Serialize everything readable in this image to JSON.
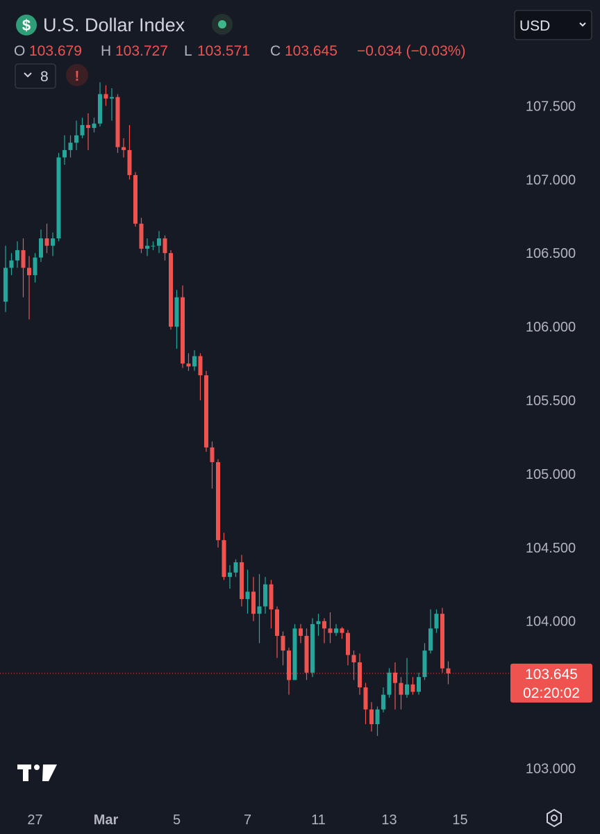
{
  "header": {
    "title": "U.S. Dollar Index",
    "currency": "USD",
    "ohlc_labels": [
      "O",
      "H",
      "L",
      "C"
    ],
    "change": "−0.034 (−0.03%)",
    "indicator_count": "8",
    "countdown": "02:20:02"
  },
  "chart_data": {
    "type": "candlestick",
    "up_color": "#26a69a",
    "down_color": "#ef5350",
    "grid": false,
    "ylim": [
      102.79,
      107.7
    ],
    "yticks": [
      {
        "value": 103,
        "label": "103.000"
      },
      {
        "value": 103.5,
        "label": "103.500"
      },
      {
        "value": 104,
        "label": "104.000"
      },
      {
        "value": 104.5,
        "label": "104.500"
      },
      {
        "value": 105,
        "label": "105.000"
      },
      {
        "value": 105.5,
        "label": "105.500"
      },
      {
        "value": 106,
        "label": "106.000"
      },
      {
        "value": 106.5,
        "label": "106.500"
      },
      {
        "value": 107,
        "label": "107.000"
      },
      {
        "value": 107.5,
        "label": "107.500"
      }
    ],
    "categories": [
      null,
      null,
      null,
      null,
      null,
      "27",
      null,
      null,
      null,
      null,
      null,
      null,
      null,
      null,
      null,
      null,
      null,
      "Mar",
      null,
      null,
      null,
      null,
      null,
      null,
      null,
      null,
      null,
      null,
      null,
      "5",
      null,
      null,
      null,
      null,
      null,
      null,
      null,
      null,
      null,
      null,
      null,
      "7",
      null,
      null,
      null,
      null,
      null,
      null,
      null,
      null,
      null,
      null,
      null,
      "11",
      null,
      null,
      null,
      null,
      null,
      null,
      null,
      null,
      null,
      null,
      null,
      "13",
      null,
      null,
      null,
      null,
      null,
      null,
      null,
      null,
      null,
      null,
      null,
      "15"
    ],
    "open": [
      106.17,
      106.4,
      106.45,
      106.52,
      106.4,
      106.35,
      106.47,
      106.6,
      106.55,
      106.6,
      107.15,
      107.2,
      107.25,
      107.3,
      107.37,
      107.35,
      107.38,
      107.58,
      107.55,
      107.56,
      107.22,
      107.2,
      107.03,
      106.7,
      106.53,
      106.55,
      106.55,
      106.6,
      106.5,
      106.0,
      106.2,
      105.75,
      105.73,
      105.8,
      105.67,
      105.18,
      105.08,
      104.55,
      104.3,
      104.33,
      104.4,
      104.15,
      104.2,
      104.05,
      104.1,
      104.25,
      104.08,
      103.9,
      103.8,
      103.6,
      103.95,
      103.9,
      103.65,
      103.98,
      104.0,
      103.95,
      103.92,
      103.95,
      103.92,
      103.77,
      103.72,
      103.55,
      103.4,
      103.3,
      103.4,
      103.5,
      103.65,
      103.58,
      103.5,
      103.57,
      103.52,
      103.62,
      103.8,
      103.95,
      104.05,
      103.679,
      null,
      null
    ],
    "high": [
      106.55,
      106.5,
      106.58,
      106.6,
      106.48,
      106.5,
      106.66,
      106.7,
      106.64,
      107.18,
      107.3,
      107.3,
      107.4,
      107.42,
      107.45,
      107.42,
      107.66,
      107.64,
      107.62,
      107.58,
      107.28,
      107.37,
      107.05,
      106.74,
      106.6,
      106.58,
      106.65,
      106.62,
      106.52,
      106.25,
      106.28,
      105.82,
      105.84,
      105.82,
      105.7,
      105.22,
      105.1,
      104.6,
      104.38,
      104.42,
      104.45,
      104.35,
      104.3,
      104.32,
      104.3,
      104.28,
      104.1,
      103.93,
      103.82,
      103.98,
      103.98,
      103.95,
      104.02,
      104.05,
      104.02,
      104.06,
      103.98,
      103.96,
      103.94,
      103.8,
      103.78,
      103.58,
      103.45,
      103.42,
      103.55,
      103.68,
      103.72,
      103.62,
      103.75,
      103.62,
      103.65,
      103.85,
      104.08,
      104.08,
      104.09,
      103.727,
      null,
      null
    ],
    "low": [
      106.1,
      106.35,
      106.4,
      106.2,
      106.05,
      106.3,
      106.44,
      106.5,
      106.48,
      106.58,
      107.1,
      107.15,
      107.2,
      107.28,
      107.2,
      107.32,
      107.36,
      107.5,
      107.4,
      107.18,
      107.15,
      107.0,
      106.68,
      106.5,
      106.48,
      106.52,
      106.5,
      106.45,
      105.98,
      105.85,
      105.72,
      105.7,
      105.7,
      105.5,
      105.15,
      104.9,
      104.5,
      104.28,
      104.22,
      104.3,
      104.1,
      104.05,
      104.0,
      103.85,
      104.05,
      103.95,
      103.75,
      103.7,
      103.5,
      103.6,
      103.85,
      103.6,
      103.62,
      103.9,
      103.85,
      103.85,
      103.9,
      103.88,
      103.7,
      103.6,
      103.5,
      103.3,
      103.25,
      103.22,
      103.38,
      103.48,
      103.4,
      103.4,
      103.48,
      103.5,
      103.5,
      103.6,
      103.78,
      103.92,
      103.65,
      103.571,
      null,
      null
    ],
    "close": [
      106.4,
      106.45,
      106.52,
      106.4,
      106.35,
      106.47,
      106.6,
      106.55,
      106.6,
      107.15,
      107.2,
      107.25,
      107.3,
      107.37,
      107.35,
      107.38,
      107.58,
      107.55,
      107.56,
      107.22,
      107.2,
      107.03,
      106.7,
      106.53,
      106.55,
      106.55,
      106.6,
      106.5,
      106.0,
      106.2,
      105.75,
      105.73,
      105.8,
      105.67,
      105.18,
      105.08,
      104.55,
      104.3,
      104.33,
      104.4,
      104.15,
      104.2,
      104.05,
      104.1,
      104.25,
      104.08,
      103.9,
      103.8,
      103.6,
      103.95,
      103.9,
      103.65,
      103.98,
      104.0,
      103.95,
      103.92,
      103.95,
      103.92,
      103.77,
      103.72,
      103.55,
      103.4,
      103.3,
      103.4,
      103.5,
      103.65,
      103.58,
      103.5,
      103.57,
      103.52,
      103.62,
      103.8,
      103.95,
      104.05,
      103.679,
      103.645,
      null,
      null
    ]
  }
}
